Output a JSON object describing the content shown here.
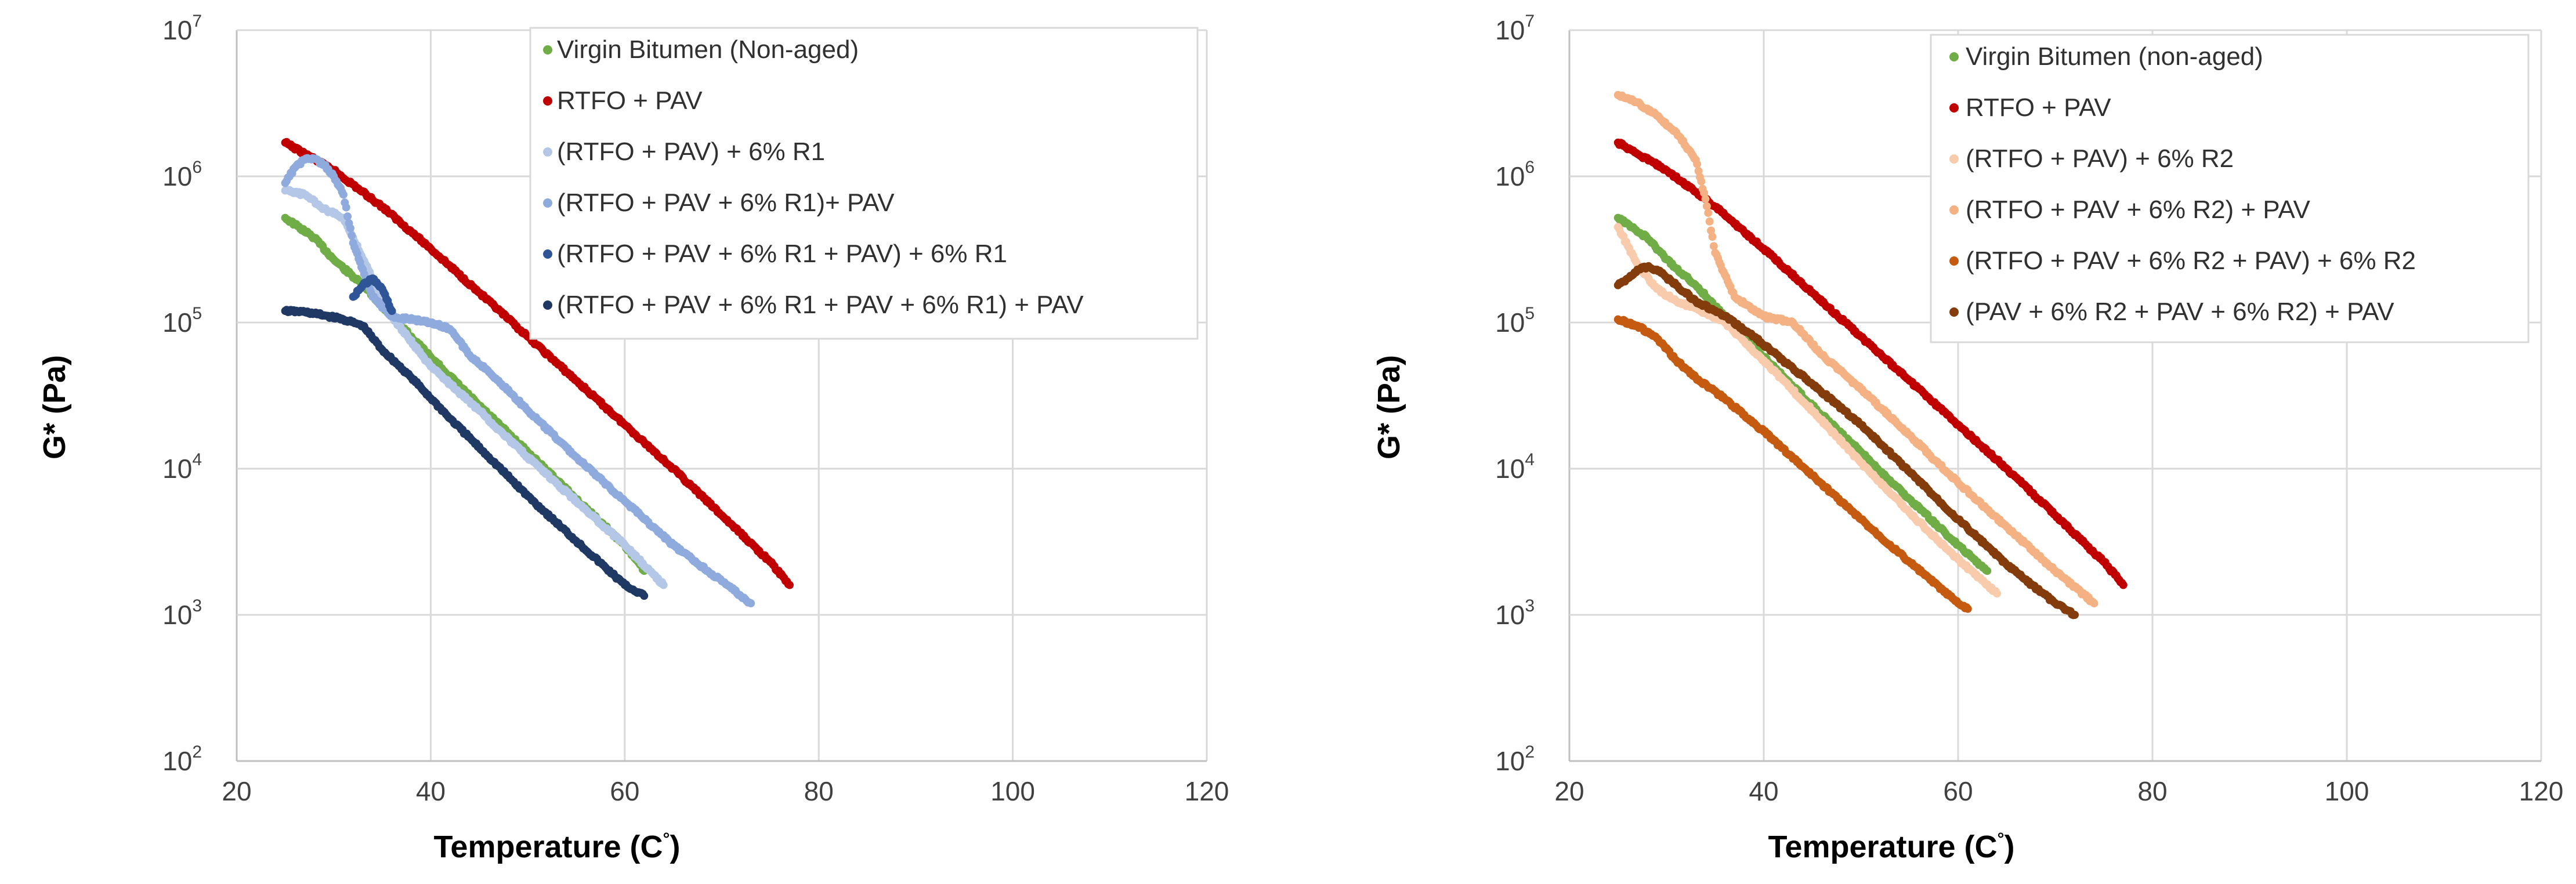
{
  "chart_data": [
    {
      "type": "scatter",
      "xlabel": "Temperature (C",
      "xlabel_suffix": "°",
      "xlabel_close": ")",
      "ylabel": "G* (Pa)",
      "xlim": [
        20,
        120
      ],
      "xticks": [
        "20",
        "40",
        "60",
        "80",
        "100",
        "120"
      ],
      "ylim_log10": [
        2,
        7
      ],
      "yticks": [
        {
          "base": "10",
          "exp": "2"
        },
        {
          "base": "10",
          "exp": "3"
        },
        {
          "base": "10",
          "exp": "4"
        },
        {
          "base": "10",
          "exp": "5"
        },
        {
          "base": "10",
          "exp": "6"
        },
        {
          "base": "10",
          "exp": "7"
        }
      ],
      "grid": true,
      "legend_position": "top-right",
      "series": [
        {
          "name": "Virgin Bitumen (Non-aged)",
          "color": "#70ad47",
          "x": [
            25,
            28,
            30,
            33,
            36,
            40,
            45,
            50,
            55,
            60,
            62
          ],
          "y": [
            520000,
            380000,
            270000,
            180000,
            110000,
            58000,
            27000,
            13000,
            6200,
            3000,
            2000
          ]
        },
        {
          "name": "RTFO + PAV",
          "color": "#c00000",
          "x": [
            25,
            30,
            35,
            40,
            45,
            50,
            55,
            60,
            65,
            70,
            75,
            77
          ],
          "y": [
            1700000,
            1100000,
            620000,
            320000,
            160000,
            80000,
            40000,
            20000,
            10000,
            4800,
            2300,
            1600
          ]
        },
        {
          "name": "(RTFO + PAV) + 6% R1",
          "color": "#b4c7e7",
          "x": [
            25,
            27,
            29,
            31,
            32,
            34,
            36,
            40,
            45,
            50,
            55,
            60,
            64
          ],
          "y": [
            800000,
            750000,
            600000,
            520000,
            380000,
            200000,
            110000,
            50000,
            25000,
            12000,
            6000,
            3000,
            1600
          ]
        },
        {
          "name": "(RTFO + PAV + 6% R1)+ PAV",
          "color": "#8faadc",
          "x": [
            25,
            26,
            27,
            28,
            29,
            30,
            31,
            32,
            34,
            36,
            40,
            42,
            44,
            47,
            50,
            55,
            60,
            65,
            70,
            73
          ],
          "y": [
            900000,
            1150000,
            1300000,
            1320000,
            1200000,
            1000000,
            750000,
            350000,
            150000,
            110000,
            100000,
            90000,
            60000,
            40000,
            25000,
            12000,
            6000,
            3000,
            1700,
            1200
          ]
        },
        {
          "name": "(RTFO + PAV + 6% R1 + PAV) + 6% R1",
          "color": "#2f5597",
          "x": [
            32,
            33,
            34,
            35,
            36
          ],
          "y": [
            150000,
            180000,
            200000,
            170000,
            120000
          ]
        },
        {
          "name": "(RTFO + PAV + 6% R1 + PAV + 6% R1) + PAV",
          "color": "#1f3864",
          "x": [
            25,
            27,
            29,
            31,
            33,
            35,
            38,
            42,
            46,
            50,
            55,
            60,
            62
          ],
          "y": [
            120000,
            118000,
            112000,
            105000,
            95000,
            65000,
            42000,
            22000,
            12000,
            6500,
            3200,
            1600,
            1350
          ]
        }
      ]
    },
    {
      "type": "scatter",
      "xlabel": "Temperature (C",
      "xlabel_suffix": "°",
      "xlabel_close": ")",
      "ylabel": "G* (Pa)",
      "xlim": [
        20,
        120
      ],
      "xticks": [
        "20",
        "40",
        "60",
        "80",
        "100",
        "120"
      ],
      "ylim_log10": [
        2,
        7
      ],
      "yticks": [
        {
          "base": "10",
          "exp": "2"
        },
        {
          "base": "10",
          "exp": "3"
        },
        {
          "base": "10",
          "exp": "4"
        },
        {
          "base": "10",
          "exp": "5"
        },
        {
          "base": "10",
          "exp": "6"
        },
        {
          "base": "10",
          "exp": "7"
        }
      ],
      "grid": true,
      "legend_position": "top-right",
      "series": [
        {
          "name": "Virgin Bitumen (non-aged)",
          "color": "#70ad47",
          "x": [
            25,
            28,
            30,
            33,
            36,
            40,
            45,
            50,
            55,
            60,
            63
          ],
          "y": [
            520000,
            380000,
            270000,
            180000,
            110000,
            58000,
            27000,
            13000,
            6200,
            3000,
            2000
          ]
        },
        {
          "name": "RTFO + PAV",
          "color": "#c00000",
          "x": [
            25,
            30,
            35,
            40,
            45,
            50,
            55,
            60,
            65,
            70,
            75,
            77
          ],
          "y": [
            1700000,
            1100000,
            620000,
            320000,
            160000,
            80000,
            40000,
            20000,
            10000,
            4800,
            2300,
            1600
          ]
        },
        {
          "name": "(RTFO + PAV) + 6% R2",
          "color": "#f8cbad",
          "x": [
            25,
            27,
            29,
            31,
            33,
            36,
            40,
            45,
            50,
            55,
            60,
            64
          ],
          "y": [
            450000,
            250000,
            170000,
            140000,
            125000,
            100000,
            55000,
            25000,
            11000,
            5000,
            2400,
            1400
          ]
        },
        {
          "name": "(RTFO + PAV + 6% R2) + PAV",
          "color": "#f4b183",
          "x": [
            25,
            27,
            29,
            31,
            33,
            34,
            35,
            37,
            40,
            43,
            46,
            50,
            55,
            60,
            65,
            70,
            74
          ],
          "y": [
            3600000,
            3200000,
            2600000,
            2000000,
            1300000,
            700000,
            300000,
            150000,
            110000,
            100000,
            60000,
            35000,
            17000,
            8000,
            4000,
            2000,
            1200
          ]
        },
        {
          "name": "(RTFO + PAV + 6% R2 + PAV) + 6% R2",
          "color": "#c55a11",
          "x": [
            25,
            27,
            29,
            31,
            33,
            36,
            40,
            45,
            50,
            55,
            60,
            61
          ],
          "y": [
            105000,
            95000,
            78000,
            55000,
            42000,
            30000,
            18000,
            9000,
            4500,
            2300,
            1200,
            1100
          ]
        },
        {
          "name": "(PAV + 6% R2 + PAV + 6% R2) + PAV",
          "color": "#843c0c",
          "x": [
            25,
            26,
            27,
            28,
            29,
            31,
            33,
            36,
            39,
            42,
            45,
            50,
            55,
            60,
            65,
            70,
            72
          ],
          "y": [
            180000,
            200000,
            230000,
            240000,
            230000,
            180000,
            140000,
            110000,
            80000,
            55000,
            38000,
            20000,
            9500,
            4500,
            2200,
            1200,
            1000
          ]
        }
      ]
    }
  ]
}
